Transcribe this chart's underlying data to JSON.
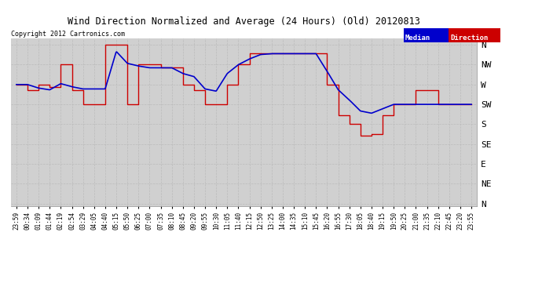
{
  "title": "Wind Direction Normalized and Average (24 Hours) (Old) 20120813",
  "copyright": "Copyright 2012 Cartronics.com",
  "outer_bg_color": "#ffffff",
  "plot_bg_color": "#d0d0d0",
  "legend_median_color": "#0000cc",
  "legend_direction_color": "#cc0000",
  "grid_color": "#bbbbbb",
  "line_median_color": "#0000cc",
  "line_direction_color": "#cc0000",
  "ylabel_directions": [
    "N",
    "NW",
    "W",
    "SW",
    "S",
    "SE",
    "E",
    "NE",
    "N"
  ],
  "ylabel_values": [
    360,
    315,
    270,
    225,
    180,
    135,
    90,
    45,
    0
  ],
  "xtick_labels": [
    "23:59",
    "00:34",
    "01:09",
    "01:44",
    "02:19",
    "02:54",
    "03:29",
    "04:05",
    "04:40",
    "05:15",
    "05:50",
    "06:25",
    "07:00",
    "07:35",
    "08:10",
    "08:45",
    "09:20",
    "09:55",
    "10:30",
    "11:05",
    "11:40",
    "12:15",
    "12:50",
    "13:25",
    "14:00",
    "14:35",
    "15:10",
    "15:45",
    "16:20",
    "16:55",
    "17:30",
    "18:05",
    "18:40",
    "19:15",
    "19:50",
    "20:25",
    "21:00",
    "21:35",
    "22:10",
    "22:45",
    "23:20",
    "23:55"
  ],
  "blue_y": [
    270,
    270,
    262,
    258,
    272,
    265,
    260,
    260,
    260,
    345,
    318,
    312,
    308,
    308,
    308,
    295,
    288,
    260,
    255,
    295,
    315,
    328,
    338,
    340,
    340,
    340,
    340,
    340,
    300,
    258,
    235,
    210,
    205,
    215,
    225,
    225,
    225,
    225,
    225,
    225,
    225,
    225
  ],
  "red_y": [
    270,
    258,
    270,
    265,
    315,
    258,
    225,
    225,
    360,
    360,
    225,
    315,
    315,
    308,
    308,
    270,
    258,
    225,
    225,
    270,
    315,
    340,
    340,
    340,
    340,
    340,
    340,
    340,
    270,
    200,
    180,
    155,
    158,
    200,
    225,
    225,
    258,
    258,
    225,
    225,
    225,
    225
  ]
}
